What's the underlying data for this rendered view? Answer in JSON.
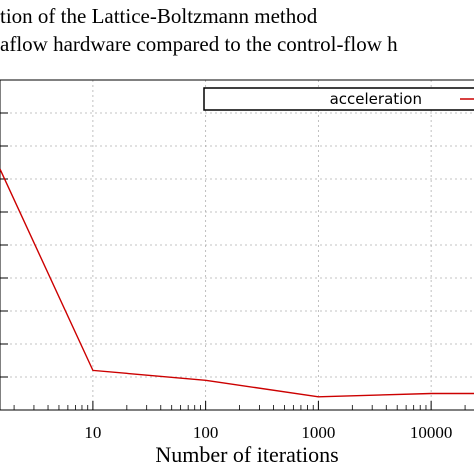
{
  "chart_data": {
    "type": "line",
    "title_lines": [
      "tion of the Lattice-Boltzmann method",
      "aflow hardware compared to the control-flow h"
    ],
    "xlabel": "Number of iterations",
    "ylabel": "",
    "x_scale": "log",
    "xlim": [
      1.5,
      25000
    ],
    "x_ticks": [
      10,
      100,
      1000,
      10000
    ],
    "x_tick_labels": [
      "10",
      "100",
      "1000",
      "10000"
    ],
    "ylim": [
      0,
      10
    ],
    "grid": true,
    "legend_position": "top-right",
    "series": [
      {
        "name": "acceleration",
        "color": "#cc0000",
        "x": [
          1.5,
          10,
          100,
          1000,
          10000,
          25000
        ],
        "y": [
          7.3,
          1.2,
          0.9,
          0.4,
          0.5,
          0.5
        ]
      }
    ]
  }
}
